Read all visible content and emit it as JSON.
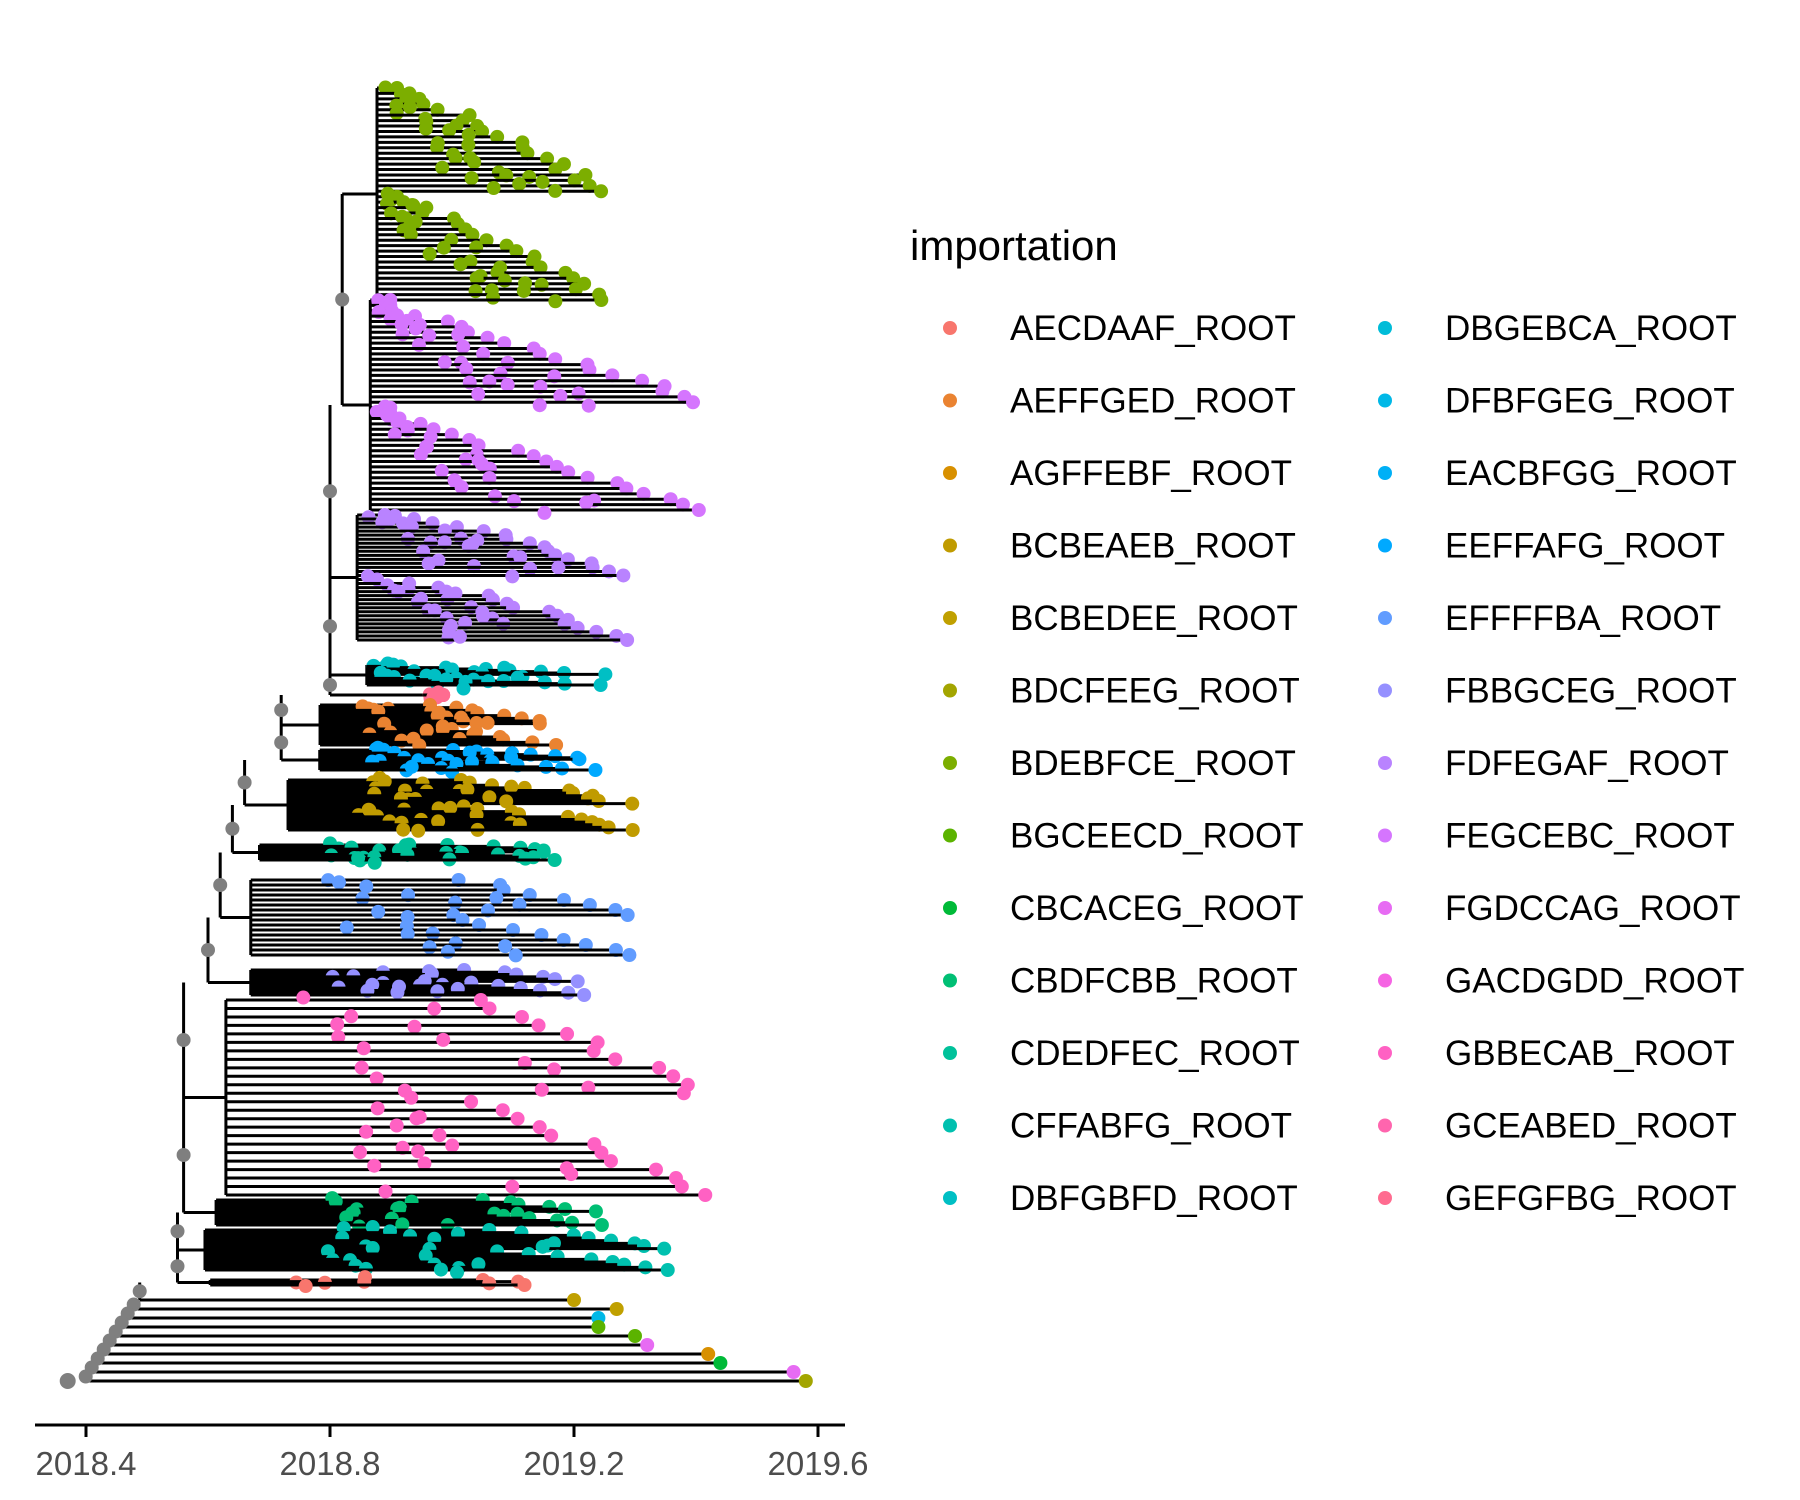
{
  "chart_data": {
    "type": "scatter",
    "subtype": "phylogenetic-tree",
    "title": "",
    "xlabel": "",
    "ylabel": "",
    "xlim": [
      2018.36,
      2019.64
    ],
    "x_ticks": [
      {
        "value": 2018.4,
        "label": "2018.4"
      },
      {
        "value": 2018.8,
        "label": "2018.8"
      },
      {
        "value": 2019.2,
        "label": "2019.2"
      },
      {
        "value": 2019.6,
        "label": "2019.6"
      }
    ],
    "grid": false,
    "legend_position": "right",
    "legend": {
      "title": "importation",
      "items": [
        {
          "label": "AECDAAF_ROOT",
          "color": "#F8766D"
        },
        {
          "label": "AEFFGED_ROOT",
          "color": "#EA8331"
        },
        {
          "label": "AGFFEBF_ROOT",
          "color": "#D89000"
        },
        {
          "label": "BCBEAEB_ROOT",
          "color": "#C09B00"
        },
        {
          "label": "BCBEDEE_ROOT",
          "color": "#C0A000"
        },
        {
          "label": "BDCFEEG_ROOT",
          "color": "#A3A500"
        },
        {
          "label": "BDEBFCE_ROOT",
          "color": "#7CAE00"
        },
        {
          "label": "BGCEECD_ROOT",
          "color": "#5BB300"
        },
        {
          "label": "CBCACEG_ROOT",
          "color": "#00BA38"
        },
        {
          "label": "CBDFCBB_ROOT",
          "color": "#00BF74"
        },
        {
          "label": "CDEDFEC_ROOT",
          "color": "#00C19A"
        },
        {
          "label": "CFFABFG_ROOT",
          "color": "#00C0AF"
        },
        {
          "label": "DBFGBFD_ROOT",
          "color": "#00BFC4"
        },
        {
          "label": "DBGEBCA_ROOT",
          "color": "#00BCD8"
        },
        {
          "label": "DFBFGEG_ROOT",
          "color": "#00B8E7"
        },
        {
          "label": "EACBFGG_ROOT",
          "color": "#00B0F6"
        },
        {
          "label": "EEFFAFG_ROOT",
          "color": "#00A9FF"
        },
        {
          "label": "EFFFFBA_ROOT",
          "color": "#619CFF"
        },
        {
          "label": "FBBGCEG_ROOT",
          "color": "#9590FF"
        },
        {
          "label": "FDFEGAF_ROOT",
          "color": "#B983FF"
        },
        {
          "label": "FEGCEBC_ROOT",
          "color": "#D575FE"
        },
        {
          "label": "FGDCCAG_ROOT",
          "color": "#E76BF3"
        },
        {
          "label": "GACDGDD_ROOT",
          "color": "#F564E3"
        },
        {
          "label": "GBBECAB_ROOT",
          "color": "#FF61C3"
        },
        {
          "label": "GCEABED_ROOT",
          "color": "#FF65AE"
        },
        {
          "label": "GEFGFBG_ROOT",
          "color": "#FF6C90"
        }
      ]
    },
    "internal_node_color": "#7F7F7F",
    "branch_color": "#000000",
    "clades": [
      {
        "importation": "BDEBFCE_ROOT",
        "stem_x": 2018.82,
        "tip_x": [
          2018.86,
          2018.93,
          2018.95,
          2018.97,
          2018.99,
          2019.01,
          2019.03,
          2019.05,
          2019.06,
          2019.08,
          2019.1,
          2019.12,
          2019.14,
          2019.15,
          2019.17,
          2019.18,
          2019.2,
          2019.22,
          2019.23,
          2019.25
        ]
      },
      {
        "importation": "FEGCEBC_ROOT",
        "stem_x": 2018.82,
        "tip_x": [
          2018.85,
          2018.88,
          2018.92,
          2018.95,
          2018.98,
          2019.0,
          2019.03,
          2019.06,
          2019.09,
          2019.12,
          2019.15,
          2019.18,
          2019.21,
          2019.24,
          2019.27,
          2019.3,
          2019.33,
          2019.36,
          2019.38,
          2019.4
        ]
      },
      {
        "importation": "FDFEGAF_ROOT",
        "stem_x": 2018.8,
        "tip_x": [
          2018.89,
          2018.93,
          2018.97,
          2019.01,
          2019.05,
          2019.08,
          2019.1,
          2019.12,
          2019.14,
          2019.16,
          2019.18,
          2019.2,
          2019.22,
          2019.25,
          2019.27,
          2019.3
        ]
      },
      {
        "importation": "DBFGBFD_ROOT",
        "stem_x": 2018.8,
        "tip_x": [
          2018.89,
          2018.92,
          2019.0,
          2019.05,
          2019.1,
          2019.15,
          2019.2,
          2019.24
        ]
      },
      {
        "importation": "GEFGFBG_ROOT",
        "stem_x": 2018.9,
        "tip_x": [
          2018.92
        ]
      },
      {
        "importation": "AEFFGED_ROOT",
        "stem_x": 2018.72,
        "tip_x": [
          2018.98,
          2019.0,
          2019.03,
          2019.05,
          2019.08,
          2019.1,
          2019.13,
          2019.16
        ]
      },
      {
        "importation": "EEFFAFG_ROOT",
        "stem_x": 2018.72,
        "tip_x": [
          2019.0,
          2019.05,
          2019.08,
          2019.12,
          2019.15,
          2019.19,
          2019.22
        ]
      },
      {
        "importation": "BCBEAEB_ROOT",
        "stem_x": 2018.66,
        "tip_x": [
          2019.0,
          2019.04,
          2019.08,
          2019.12,
          2019.18,
          2019.2,
          2019.22,
          2019.24,
          2019.26,
          2019.28
        ]
      },
      {
        "importation": "CDEDFEC_ROOT",
        "stem_x": 2018.64,
        "tip_x": [
          2019.01,
          2019.08,
          2019.1,
          2019.12,
          2019.14,
          2019.16
        ]
      },
      {
        "importation": "EFFFFBA_ROOT",
        "stem_x": 2018.62,
        "tip_x": [
          2019.03,
          2019.06,
          2019.1,
          2019.14,
          2019.18,
          2019.22,
          2019.25,
          2019.28
        ]
      },
      {
        "importation": "FBBGCEG_ROOT",
        "stem_x": 2018.6,
        "tip_x": [
          2019.03,
          2019.07,
          2019.1,
          2019.14,
          2019.18,
          2019.2
        ]
      },
      {
        "importation": "GBBECAB_ROOT",
        "stem_x": 2018.56,
        "tip_x": [
          2019.05,
          2019.08,
          2019.12,
          2019.15,
          2019.18,
          2019.22,
          2019.25,
          2019.28,
          2019.32,
          2019.35,
          2019.38,
          2019.4
        ]
      },
      {
        "importation": "CBDFCBB_ROOT",
        "stem_x": 2018.56,
        "tip_x": [
          2019.05,
          2019.08,
          2019.12,
          2019.16,
          2019.2,
          2019.24
        ]
      },
      {
        "importation": "CFFABFG_ROOT",
        "stem_x": 2018.55,
        "tip_x": [
          2019.07,
          2019.12,
          2019.18,
          2019.22,
          2019.26,
          2019.3,
          2019.33,
          2019.34
        ]
      },
      {
        "importation": "AECDAAF_ROOT",
        "stem_x": 2018.55,
        "tip_x": [
          2019.07,
          2019.12
        ]
      }
    ],
    "singletons": [
      {
        "importation": "BCBEDEE_ROOT",
        "x": 2019.2
      },
      {
        "importation": "BCBEDEE_ROOT",
        "x": 2019.27
      },
      {
        "importation": "DFBFGEG_ROOT",
        "x": 2019.24
      },
      {
        "importation": "BGCEECD_ROOT",
        "x": 2019.24
      },
      {
        "importation": "BGCEECD_ROOT",
        "x": 2019.3
      },
      {
        "importation": "FGDCCAG_ROOT",
        "x": 2019.32
      },
      {
        "importation": "AGFFEBF_ROOT",
        "x": 2019.42
      },
      {
        "importation": "CBCACEG_ROOT",
        "x": 2019.44
      },
      {
        "importation": "FGDCCAG_ROOT",
        "x": 2019.56
      },
      {
        "importation": "BDCFEEG_ROOT",
        "x": 2019.58
      }
    ],
    "root_x": 2018.37
  }
}
